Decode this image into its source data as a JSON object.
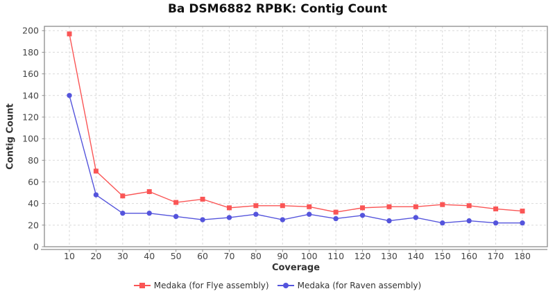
{
  "title": "Ba DSM6882 RPBK: Contig Count",
  "chart_data": {
    "type": "line",
    "title": "Ba DSM6882 RPBK: Contig Count",
    "xlabel": "Coverage",
    "ylabel": "Contig Count",
    "x": [
      10,
      20,
      30,
      40,
      50,
      60,
      70,
      80,
      90,
      100,
      110,
      120,
      130,
      140,
      150,
      160,
      170,
      180
    ],
    "series": [
      {
        "name": "Medaka (for Flye assembly)",
        "marker": "square",
        "color": "#fa5555",
        "values": [
          197,
          70,
          47,
          51,
          41,
          44,
          36,
          38,
          38,
          37,
          32,
          36,
          37,
          37,
          39,
          38,
          35,
          33
        ]
      },
      {
        "name": "Medaka (for Raven assembly)",
        "marker": "circle",
        "color": "#5454dc",
        "values": [
          140,
          48,
          31,
          31,
          28,
          25,
          27,
          30,
          25,
          30,
          26,
          29,
          24,
          27,
          22,
          24,
          22,
          22
        ]
      }
    ],
    "ylim": [
      0,
      200
    ],
    "yticks": [
      0,
      20,
      40,
      60,
      80,
      100,
      120,
      140,
      160,
      180,
      200
    ],
    "grid": true,
    "legend_position": "bottom",
    "colors": {
      "grid": "#d9d9d9",
      "axis": "#8c8c8c",
      "tick_label": "#444444",
      "axis_label": "#333333",
      "title": "#111111"
    }
  }
}
